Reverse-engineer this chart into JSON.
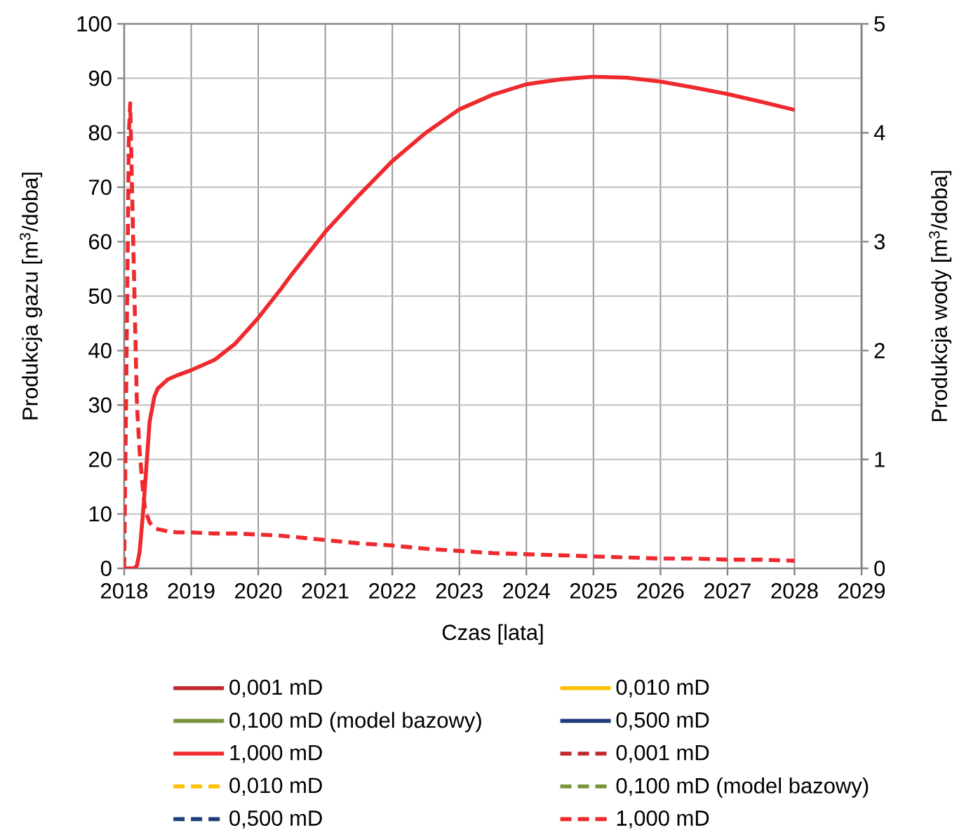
{
  "chart_data": {
    "type": "line",
    "xlabel": "Czas [lata]",
    "ylabel": "Produkcja gazu [m$^{3}$/doba]",
    "y2label": "Produkcja wody [m$^{3}$/doba]",
    "x": [
      2018,
      2018.04,
      2018.07,
      2018.09,
      2018.12,
      2018.15,
      2018.19,
      2018.23,
      2018.28,
      2018.31,
      2018.35,
      2018.38,
      2018.45,
      2018.5,
      2018.65,
      2018.8,
      2019,
      2019.35,
      2019.65,
      2020,
      2020.35,
      2020.5,
      2021,
      2021.5,
      2022,
      2022.5,
      2023,
      2023.5,
      2024,
      2024.5,
      2025,
      2025.5,
      2026,
      2026.5,
      2027,
      2027.5,
      2028
    ],
    "xlim": [
      2018,
      2029
    ],
    "xticks": [
      2018,
      2019,
      2020,
      2021,
      2022,
      2023,
      2024,
      2025,
      2026,
      2027,
      2028,
      2029
    ],
    "ylim": [
      0,
      100
    ],
    "yticks": [
      0,
      10,
      20,
      30,
      40,
      50,
      60,
      70,
      80,
      90,
      100
    ],
    "y2lim": [
      0,
      5
    ],
    "y2ticks": [
      0,
      1,
      2,
      3,
      4,
      5
    ],
    "grid": true,
    "legend": "bottom",
    "series": [
      {
        "name": "0,001 mD",
        "color": "#c0262c",
        "line_style": "solid",
        "values": [
          null,
          null,
          null,
          null,
          null,
          null,
          null,
          null,
          null,
          null,
          null,
          null,
          null,
          null,
          null,
          null,
          null,
          null,
          null,
          null,
          null,
          null,
          null,
          null,
          null,
          null,
          null,
          null,
          null,
          null,
          null,
          null,
          null,
          null,
          null,
          null,
          null
        ]
      },
      {
        "name": "0,010 mD",
        "color": "#ffc000",
        "line_style": "solid",
        "values": [
          null,
          null,
          null,
          null,
          null,
          null,
          null,
          null,
          null,
          null,
          null,
          null,
          null,
          null,
          null,
          null,
          null,
          null,
          null,
          null,
          null,
          null,
          null,
          null,
          null,
          null,
          null,
          null,
          null,
          null,
          null,
          null,
          null,
          null,
          null,
          null,
          null
        ]
      },
      {
        "name": "0,100 mD (model bazowy)",
        "color": "#77933c",
        "line_style": "solid",
        "values": [
          null,
          null,
          null,
          null,
          null,
          null,
          null,
          null,
          null,
          null,
          null,
          null,
          null,
          null,
          null,
          null,
          null,
          null,
          null,
          null,
          null,
          null,
          null,
          null,
          null,
          null,
          null,
          null,
          null,
          null,
          null,
          null,
          null,
          null,
          null,
          null,
          null
        ]
      },
      {
        "name": "0,500 mD",
        "color": "#1f3d7a",
        "line_style": "solid",
        "values": [
          null,
          null,
          null,
          null,
          null,
          null,
          null,
          null,
          null,
          null,
          null,
          null,
          null,
          null,
          null,
          null,
          null,
          null,
          null,
          null,
          null,
          null,
          null,
          null,
          null,
          null,
          null,
          null,
          null,
          null,
          null,
          null,
          null,
          null,
          null,
          null,
          null
        ]
      },
      {
        "name": "1,000 mD",
        "color": "#ee2a2e",
        "line_style": "solid",
        "values": [
          0,
          0,
          0,
          0,
          0,
          0,
          0.5,
          3,
          10,
          15,
          22,
          27,
          31.5,
          33,
          34.7,
          35.5,
          36.4,
          38.3,
          41.2,
          46,
          51.5,
          54,
          61.8,
          68.5,
          74.8,
          80,
          84.3,
          87,
          88.9,
          89.8,
          90.3,
          90.1,
          89.4,
          88.3,
          87.1,
          85.7,
          84.2
        ]
      },
      {
        "name": "0,001 mD",
        "color": "#c0262c",
        "line_style": "dashed",
        "axis": "y2",
        "values": [
          null,
          null,
          null,
          null,
          null,
          null,
          null,
          null,
          null,
          null,
          null,
          null,
          null,
          null,
          null,
          null,
          null,
          null,
          null,
          null,
          null,
          null,
          null,
          null,
          null,
          null,
          null,
          null,
          null,
          null,
          null,
          null,
          null,
          null,
          null,
          null,
          null
        ]
      },
      {
        "name": "0,010 mD",
        "color": "#ffc000",
        "line_style": "dashed",
        "axis": "y2",
        "values": [
          null,
          null,
          null,
          null,
          null,
          null,
          null,
          null,
          null,
          null,
          null,
          null,
          null,
          null,
          null,
          null,
          null,
          null,
          null,
          null,
          null,
          null,
          null,
          null,
          null,
          null,
          null,
          null,
          null,
          null,
          null,
          null,
          null,
          null,
          null,
          null,
          null
        ]
      },
      {
        "name": "0,100 mD (model bazowy)",
        "color": "#77933c",
        "line_style": "dashed",
        "axis": "y2",
        "values": [
          null,
          null,
          null,
          null,
          null,
          null,
          null,
          null,
          null,
          null,
          null,
          null,
          null,
          null,
          null,
          null,
          null,
          null,
          null,
          null,
          null,
          null,
          null,
          null,
          null,
          null,
          null,
          null,
          null,
          null,
          null,
          null,
          null,
          null,
          null,
          null,
          null
        ]
      },
      {
        "name": "0,500 mD",
        "color": "#1f3d7a",
        "line_style": "dashed",
        "axis": "y2",
        "values": [
          null,
          null,
          null,
          null,
          null,
          null,
          null,
          null,
          null,
          null,
          null,
          null,
          null,
          null,
          null,
          null,
          null,
          null,
          null,
          null,
          null,
          null,
          null,
          null,
          null,
          null,
          null,
          null,
          null,
          null,
          null,
          null,
          null,
          null,
          null,
          null,
          null
        ]
      },
      {
        "name": "1,000 mD",
        "color": "#ee2a2e",
        "line_style": "dashed",
        "axis": "y2",
        "values": [
          0,
          2.2,
          4.0,
          4.27,
          3.4,
          2.6,
          1.5,
          1.08,
          0.72,
          0.55,
          0.47,
          0.42,
          0.37,
          0.36,
          0.34,
          0.33,
          0.33,
          0.32,
          0.32,
          0.31,
          0.3,
          0.29,
          0.26,
          0.23,
          0.21,
          0.18,
          0.16,
          0.14,
          0.13,
          0.12,
          0.11,
          0.1,
          0.09,
          0.09,
          0.08,
          0.08,
          0.07
        ]
      }
    ]
  }
}
